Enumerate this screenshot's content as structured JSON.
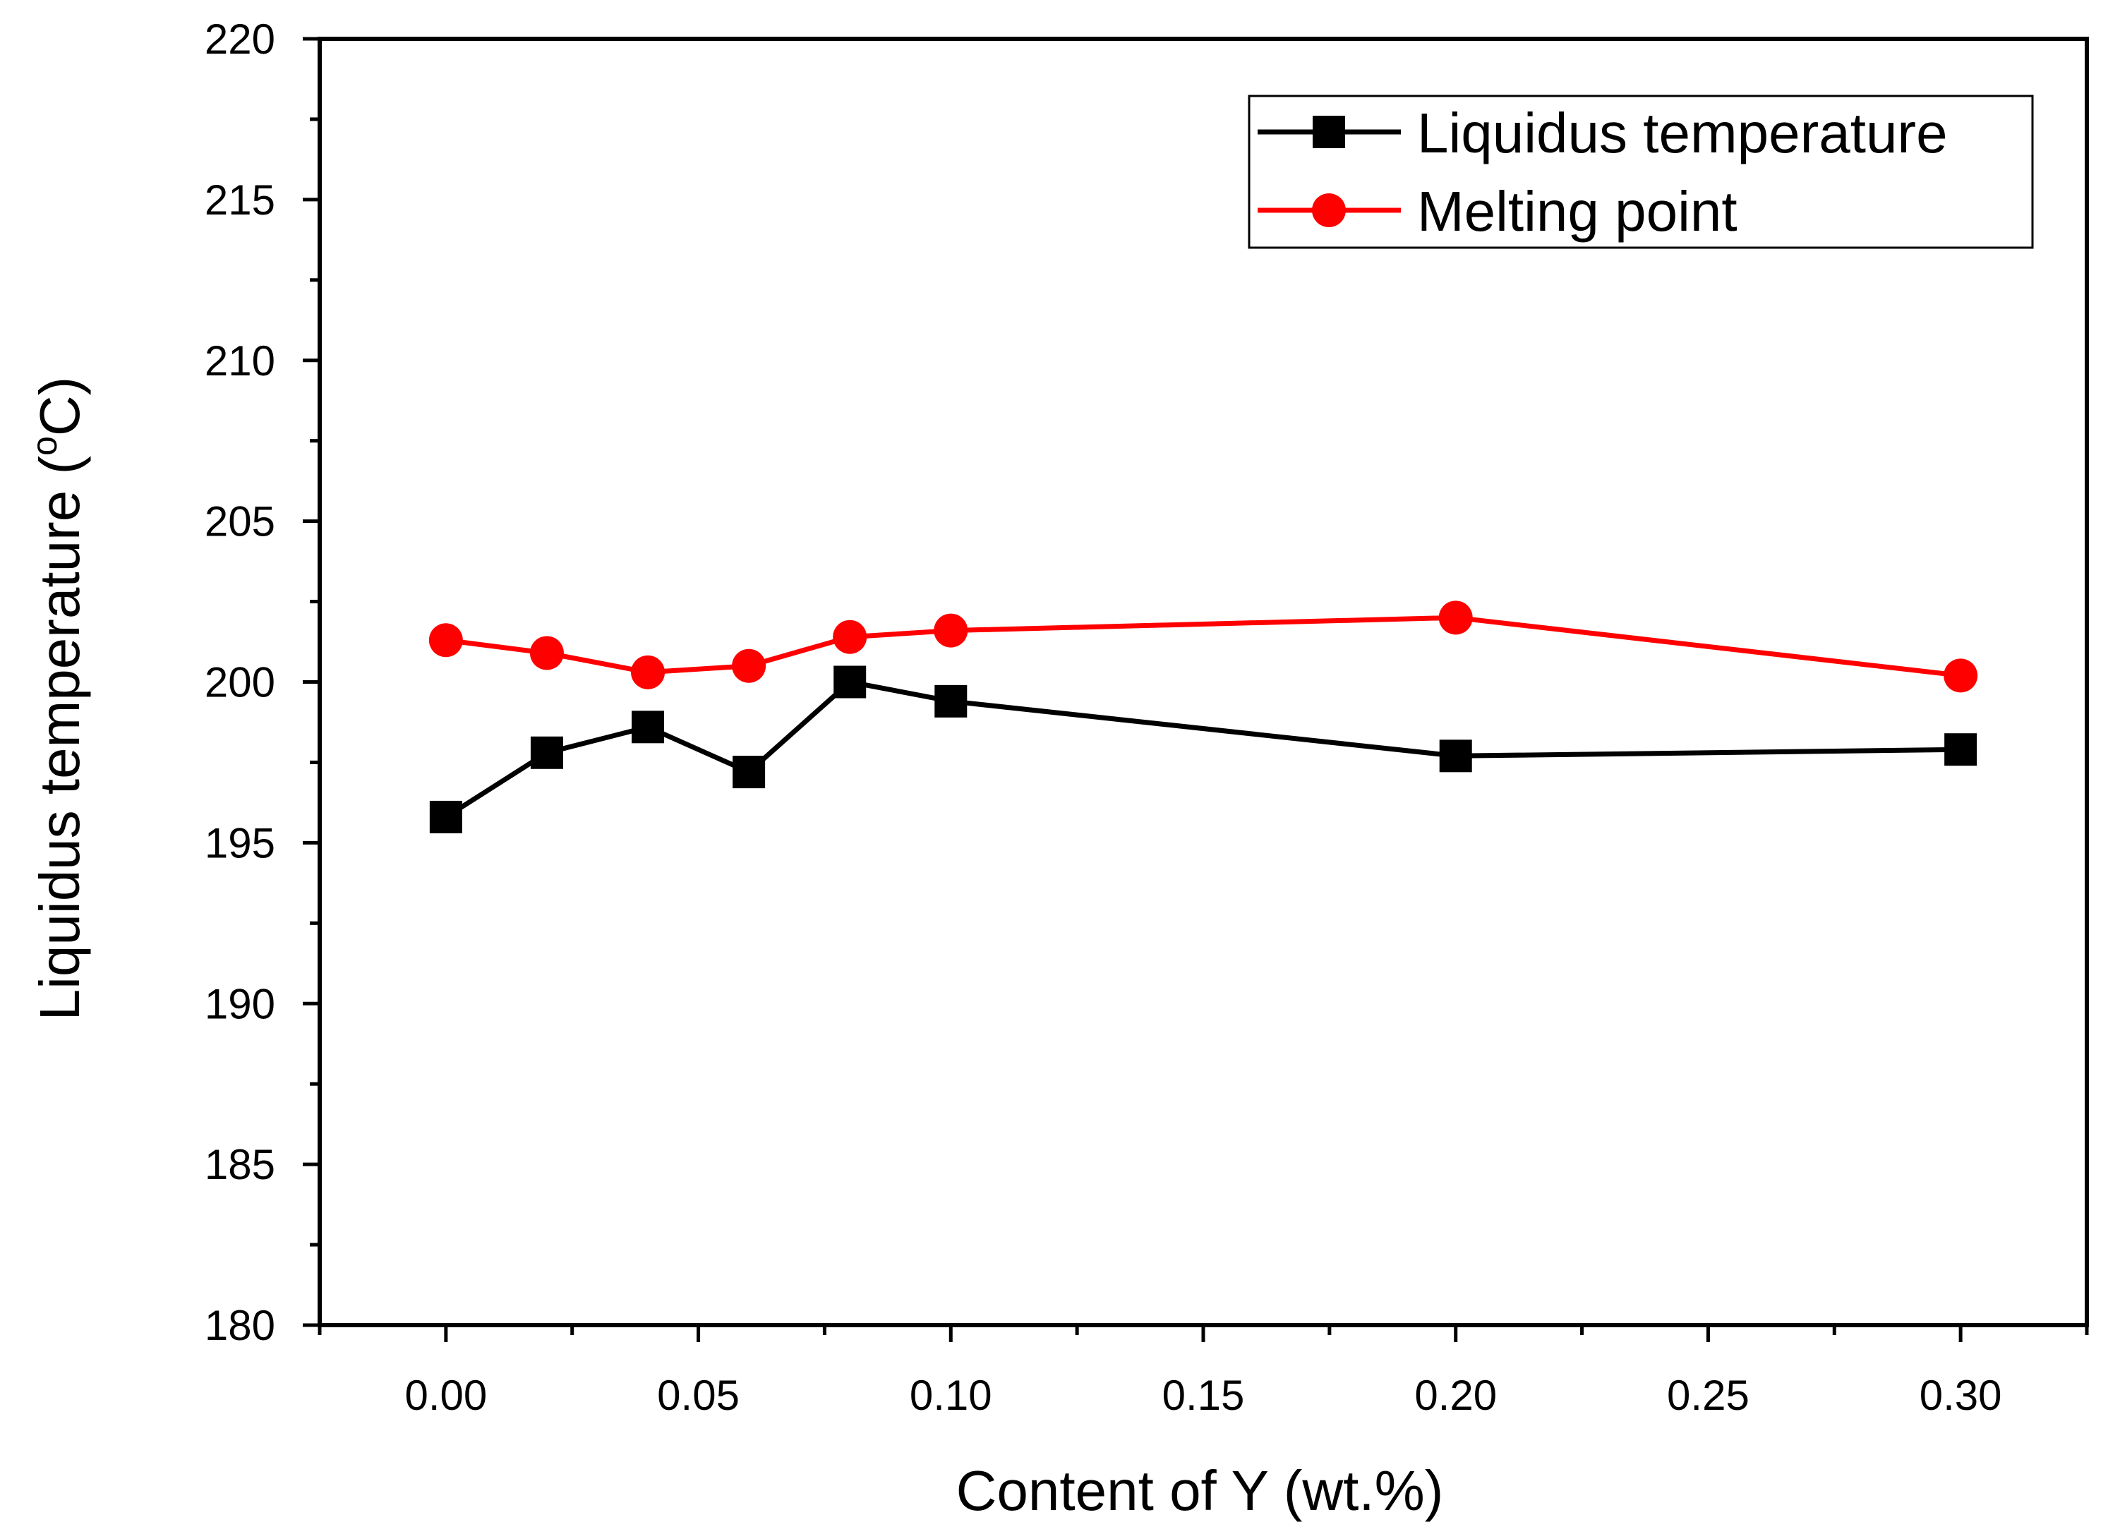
{
  "chart_data": {
    "type": "line",
    "title": "",
    "xlabel": "Content of Y (wt.%)",
    "ylabel_main": "Liquidus temperature (",
    "ylabel_sup": "o",
    "ylabel_end": "C)",
    "xlim": [
      -0.025,
      0.325
    ],
    "ylim": [
      180,
      220
    ],
    "x_major_ticks": [
      0.0,
      0.05,
      0.1,
      0.15,
      0.2,
      0.25,
      0.3
    ],
    "x_tick_labels": [
      "0.00",
      "0.05",
      "0.10",
      "0.15",
      "0.20",
      "0.25",
      "0.30"
    ],
    "x_minor_ticks": [
      -0.025,
      0.025,
      0.075,
      0.125,
      0.175,
      0.225,
      0.275,
      0.325
    ],
    "y_major_ticks": [
      180,
      185,
      190,
      195,
      200,
      205,
      210,
      215,
      220
    ],
    "y_tick_labels": [
      "180",
      "185",
      "190",
      "195",
      "200",
      "205",
      "210",
      "215",
      "220"
    ],
    "y_minor_ticks": [
      182.5,
      187.5,
      192.5,
      197.5,
      202.5,
      207.5,
      212.5,
      217.5
    ],
    "grid": false,
    "legend_position": "top-right",
    "x": [
      0.0,
      0.02,
      0.04,
      0.06,
      0.08,
      0.1,
      0.2,
      0.3
    ],
    "series": [
      {
        "name": "Liquidus temperature",
        "color": "#000000",
        "marker": "square",
        "values": [
          195.8,
          197.8,
          198.6,
          197.2,
          200.0,
          199.4,
          197.7,
          197.9
        ]
      },
      {
        "name": "Melting point",
        "color": "#ff0000",
        "marker": "circle",
        "values": [
          201.3,
          200.9,
          200.3,
          200.5,
          201.4,
          201.6,
          202.0,
          200.2
        ]
      }
    ]
  }
}
